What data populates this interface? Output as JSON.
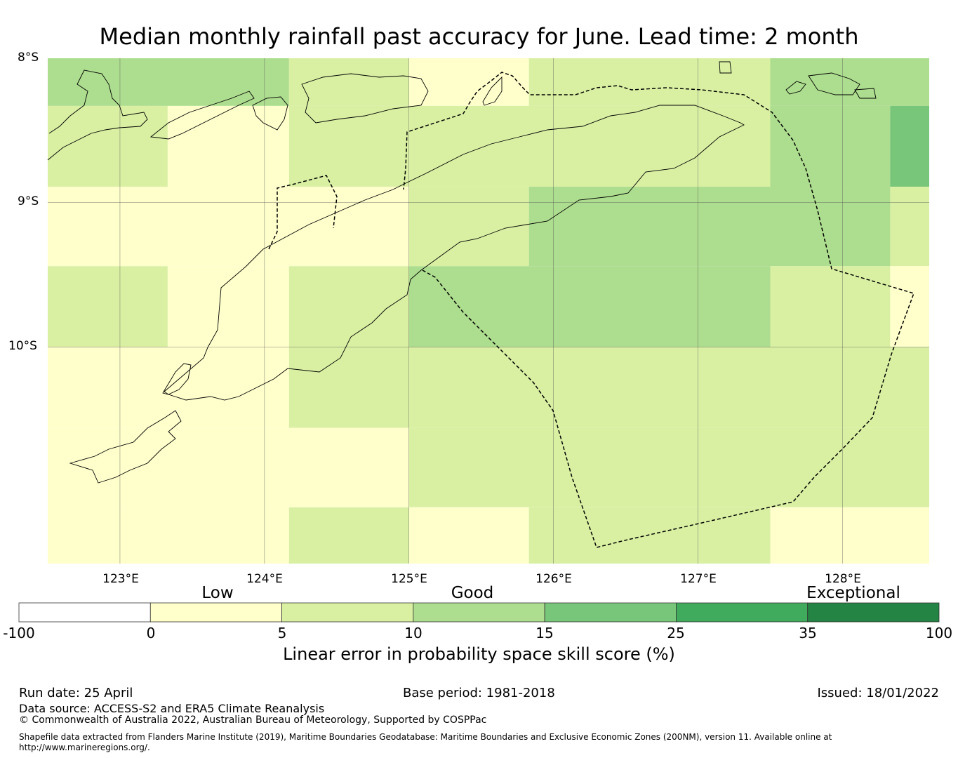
{
  "title": "Median monthly rainfall past accuracy for June. Lead time: 2 month",
  "lat_labels": [
    "8°S",
    "9°S",
    "10°S"
  ],
  "lon_labels": [
    "123°E",
    "124°E",
    "125°E",
    "126°E",
    "127°E",
    "128°E"
  ],
  "map": {
    "region": {
      "lon": [
        122.5,
        128.6
      ],
      "lat": [
        -11.5,
        -8.0
      ]
    },
    "grid_cells": [
      {
        "lon": [
          122.5,
          124.17
        ],
        "lat": [
          -8.33,
          -8.0
        ],
        "category": "10-15"
      },
      {
        "lon": [
          124.17,
          125.0
        ],
        "lat": [
          -8.33,
          -8.0
        ],
        "category": "5-10"
      },
      {
        "lon": [
          125.0,
          125.83
        ],
        "lat": [
          -8.33,
          -8.0
        ],
        "category": "0-5"
      },
      {
        "lon": [
          125.83,
          127.5
        ],
        "lat": [
          -8.33,
          -8.0
        ],
        "category": "5-10"
      },
      {
        "lon": [
          127.5,
          128.6
        ],
        "lat": [
          -8.33,
          -8.0
        ],
        "category": "10-15"
      },
      {
        "lon": [
          122.5,
          123.33
        ],
        "lat": [
          -8.89,
          -8.33
        ],
        "category": "5-10"
      },
      {
        "lon": [
          123.33,
          124.17
        ],
        "lat": [
          -8.89,
          -8.33
        ],
        "category": "0-5"
      },
      {
        "lon": [
          124.17,
          127.5
        ],
        "lat": [
          -8.89,
          -8.33
        ],
        "category": "5-10"
      },
      {
        "lon": [
          127.5,
          128.33
        ],
        "lat": [
          -8.89,
          -8.33
        ],
        "category": "10-15"
      },
      {
        "lon": [
          128.33,
          128.6
        ],
        "lat": [
          -8.89,
          -8.33
        ],
        "category": "15-25"
      },
      {
        "lon": [
          122.5,
          125.0
        ],
        "lat": [
          -9.44,
          -8.89
        ],
        "category": "0-5"
      },
      {
        "lon": [
          125.0,
          125.83
        ],
        "lat": [
          -9.44,
          -8.89
        ],
        "category": "5-10"
      },
      {
        "lon": [
          125.83,
          128.33
        ],
        "lat": [
          -9.44,
          -8.89
        ],
        "category": "10-15"
      },
      {
        "lon": [
          128.33,
          128.6
        ],
        "lat": [
          -9.44,
          -8.89
        ],
        "category": "5-10"
      },
      {
        "lon": [
          122.5,
          123.33
        ],
        "lat": [
          -10.0,
          -9.44
        ],
        "category": "5-10"
      },
      {
        "lon": [
          123.33,
          124.17
        ],
        "lat": [
          -10.0,
          -9.44
        ],
        "category": "0-5"
      },
      {
        "lon": [
          124.17,
          125.0
        ],
        "lat": [
          -10.0,
          -9.44
        ],
        "category": "5-10"
      },
      {
        "lon": [
          125.0,
          127.5
        ],
        "lat": [
          -10.0,
          -9.44
        ],
        "category": "10-15"
      },
      {
        "lon": [
          127.5,
          128.33
        ],
        "lat": [
          -10.0,
          -9.44
        ],
        "category": "5-10"
      },
      {
        "lon": [
          128.33,
          128.6
        ],
        "lat": [
          -10.0,
          -9.44
        ],
        "category": "0-5"
      },
      {
        "lon": [
          122.5,
          124.17
        ],
        "lat": [
          -10.56,
          -10.0
        ],
        "category": "0-5"
      },
      {
        "lon": [
          124.17,
          128.6
        ],
        "lat": [
          -10.56,
          -10.0
        ],
        "category": "5-10"
      },
      {
        "lon": [
          122.5,
          125.0
        ],
        "lat": [
          -11.11,
          -10.56
        ],
        "category": "0-5"
      },
      {
        "lon": [
          125.0,
          128.6
        ],
        "lat": [
          -11.11,
          -10.56
        ],
        "category": "5-10"
      },
      {
        "lon": [
          122.5,
          124.17
        ],
        "lat": [
          -11.5,
          -11.11
        ],
        "category": "0-5"
      },
      {
        "lon": [
          124.17,
          125.0
        ],
        "lat": [
          -11.5,
          -11.11
        ],
        "category": "5-10"
      },
      {
        "lon": [
          125.0,
          125.83
        ],
        "lat": [
          -11.5,
          -11.11
        ],
        "category": "0-5"
      },
      {
        "lon": [
          125.83,
          127.5
        ],
        "lat": [
          -11.5,
          -11.11
        ],
        "category": "5-10"
      },
      {
        "lon": [
          127.5,
          128.6
        ],
        "lat": [
          -11.5,
          -11.11
        ],
        "category": "0-5"
      }
    ]
  },
  "colorbar": {
    "categories": [
      "Low",
      "Good",
      "Exceptional"
    ],
    "ticks": [
      "-100",
      "0",
      "5",
      "10",
      "15",
      "25",
      "35",
      "100"
    ],
    "colors": [
      "#ffffff",
      "#ffffcc",
      "#d9f0a3",
      "#addd8e",
      "#78c679",
      "#41ab5d",
      "#238443"
    ],
    "label": "Linear error in probability space skill score (%)"
  },
  "footer": {
    "run_date": "Run date: 25 April",
    "base_period": "Base period: 1981-2018",
    "issued": "Issued: 18/01/2022",
    "data_source": "Data source: ACCESS-S2 and ERA5 Climate Reanalysis",
    "copyright": "© Commonwealth of Australia 2022, Australian Bureau of Meteorology, Supported by COSPPac",
    "shapefile_line1": "Shapefile data extracted from Flanders Marine Institute (2019), Maritime Boundaries Geodatabase: Maritime Boundaries and Exclusive Economic Zones (200NM), version 11. Available online at",
    "shapefile_line2": "http://www.marineregions.org/."
  }
}
